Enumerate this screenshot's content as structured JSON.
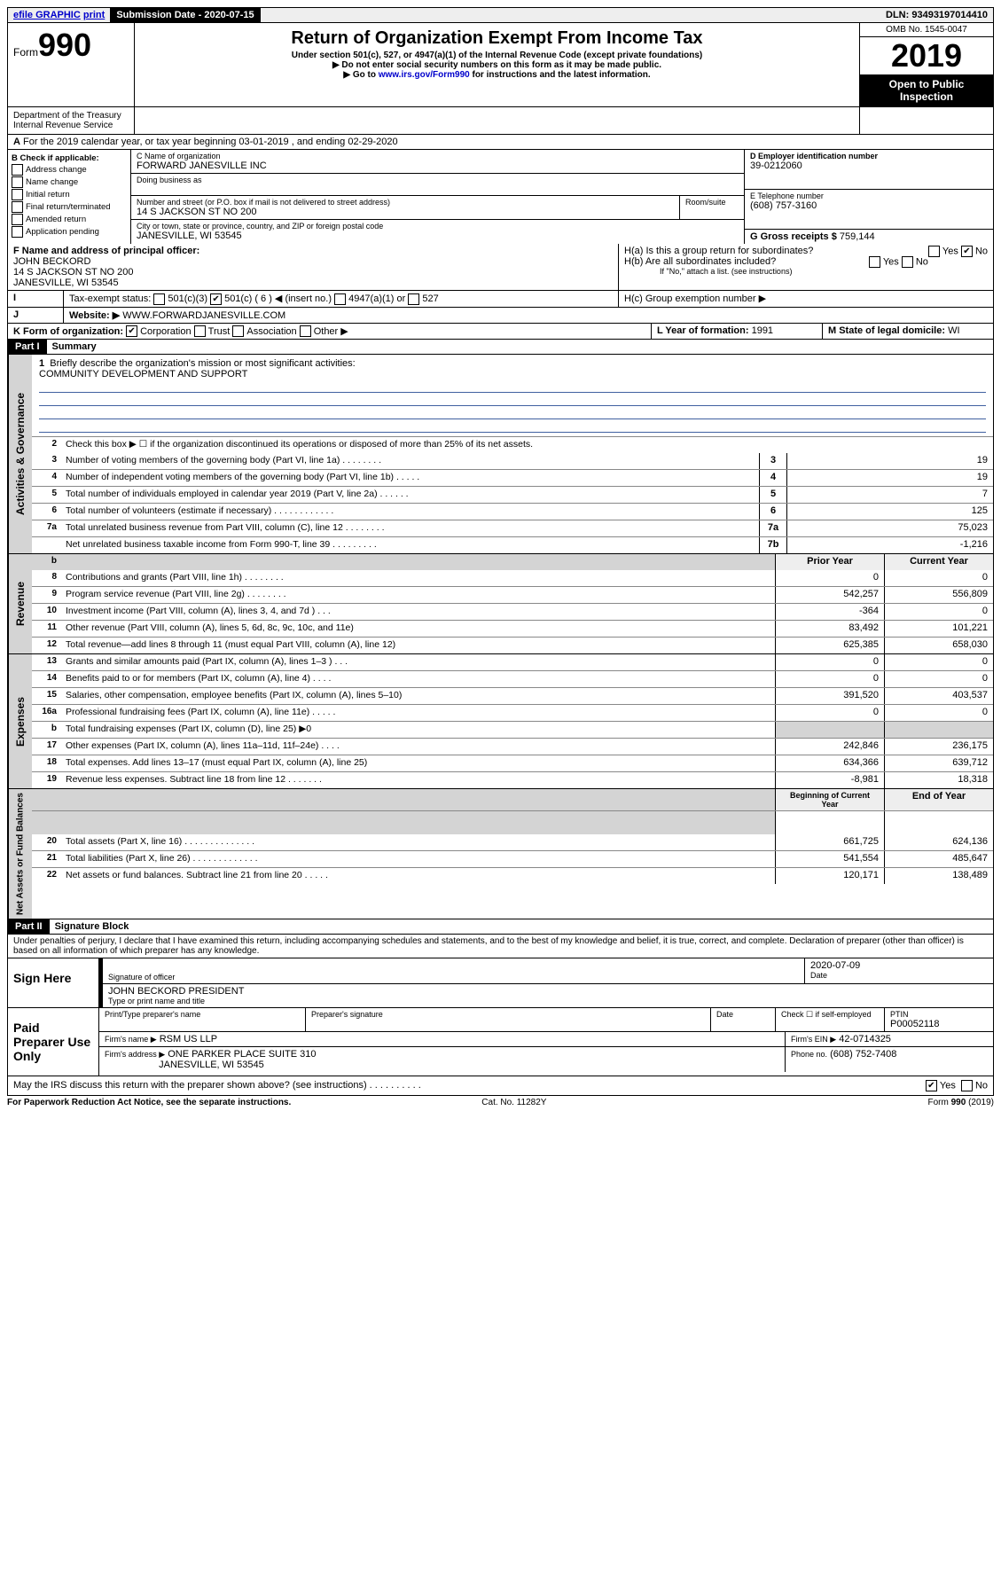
{
  "topbar": {
    "efile": "efile GRAPHIC",
    "print": "print",
    "sub_label": "Submission Date - 2020-07-15",
    "dln": "DLN: 93493197014410"
  },
  "header": {
    "form": "Form",
    "form_no": "990",
    "title": "Return of Organization Exempt From Income Tax",
    "sub1": "Under section 501(c), 527, or 4947(a)(1) of the Internal Revenue Code (except private foundations)",
    "sub2": "▶ Do not enter social security numbers on this form as it may be made public.",
    "sub3_pre": "▶ Go to ",
    "sub3_link": "www.irs.gov/Form990",
    "sub3_post": " for instructions and the latest information.",
    "omb": "OMB No. 1545-0047",
    "year": "2019",
    "open": "Open to Public Inspection",
    "dept": "Department of the Treasury\nInternal Revenue Service"
  },
  "rowA": "For the 2019 calendar year, or tax year beginning 03-01-2019     , and ending 02-29-2020",
  "boxB": {
    "title": "B Check if applicable:",
    "items": [
      "Address change",
      "Name change",
      "Initial return",
      "Final return/terminated",
      "Amended return",
      "Application pending"
    ]
  },
  "boxC": {
    "name_lbl": "C Name of organization",
    "name": "FORWARD JANESVILLE INC",
    "dba_lbl": "Doing business as",
    "addr_lbl": "Number and street (or P.O. box if mail is not delivered to street address)",
    "addr": "14 S JACKSON ST NO 200",
    "room_lbl": "Room/suite",
    "city_lbl": "City or town, state or province, country, and ZIP or foreign postal code",
    "city": "JANESVILLE, WI  53545"
  },
  "boxD": {
    "lbl": "D Employer identification number",
    "val": "39-0212060"
  },
  "boxE": {
    "lbl": "E Telephone number",
    "val": "(608) 757-3160"
  },
  "boxG": {
    "lbl": "G Gross receipts $",
    "val": " 759,144"
  },
  "boxF": {
    "lbl": "F  Name and address of principal officer:",
    "name": "JOHN BECKORD",
    "addr1": "14 S JACKSON ST NO 200",
    "addr2": "JANESVILLE, WI  53545"
  },
  "boxH": {
    "a": "H(a)  Is this a group return for subordinates?",
    "b": "H(b)  Are all subordinates included?",
    "note": "If \"No,\" attach a list. (see instructions)",
    "c": "H(c)  Group exemption number ▶"
  },
  "boxI": {
    "lbl": "Tax-exempt status:",
    "opts": [
      "501(c)(3)",
      "501(c) ( 6 ) ◀ (insert no.)",
      "4947(a)(1) or",
      "527"
    ]
  },
  "boxJ": {
    "lbl": "Website: ▶",
    "val": " WWW.FORWARDJANESVILLE.COM"
  },
  "boxK": {
    "lbl": "K Form of organization:",
    "opts": [
      "Corporation",
      "Trust",
      "Association",
      "Other ▶"
    ]
  },
  "boxL": {
    "lbl": "L Year of formation:",
    "val": "1991"
  },
  "boxM": {
    "lbl": "M State of legal domicile:",
    "val": "WI"
  },
  "part1": {
    "hdr": "Part I",
    "title": "Summary"
  },
  "summary": {
    "l1": "Briefly describe the organization's mission or most significant activities:",
    "mission": "COMMUNITY DEVELOPMENT AND SUPPORT",
    "l2": "Check this box ▶ ☐  if the organization discontinued its operations or disposed of more than 25% of its net assets.",
    "lines1": [
      {
        "n": "3",
        "d": "Number of voting members of the governing body (Part VI, line 1a)   .    .    .    .    .    .    .    .",
        "b": "3",
        "v": "19"
      },
      {
        "n": "4",
        "d": "Number of independent voting members of the governing body (Part VI, line 1b)  .    .    .    .    .",
        "b": "4",
        "v": "19"
      },
      {
        "n": "5",
        "d": "Total number of individuals employed in calendar year 2019 (Part V, line 2a)   .    .    .    .    .    .",
        "b": "5",
        "v": "7"
      },
      {
        "n": "6",
        "d": "Total number of volunteers (estimate if necessary)   .    .    .    .    .    .    .    .    .    .    .    .",
        "b": "6",
        "v": "125"
      },
      {
        "n": "7a",
        "d": "Total unrelated business revenue from Part VIII, column (C), line 12  .    .    .    .    .    .    .    .",
        "b": "7a",
        "v": "75,023"
      },
      {
        "n": "",
        "d": "Net unrelated business taxable income from Form 990-T, line 39   .    .    .    .    .    .    .    .    .",
        "b": "7b",
        "v": "-1,216"
      }
    ],
    "hdr_prior": "Prior Year",
    "hdr_curr": "Current Year",
    "revenue": [
      {
        "n": "8",
        "d": "Contributions and grants (Part VIII, line 1h)   .    .    .    .    .    .    .    .",
        "p": "0",
        "c": "0"
      },
      {
        "n": "9",
        "d": "Program service revenue (Part VIII, line 2g)   .    .    .    .    .    .    .    .",
        "p": "542,257",
        "c": "556,809"
      },
      {
        "n": "10",
        "d": "Investment income (Part VIII, column (A), lines 3, 4, and 7d )   .    .    .",
        "p": "-364",
        "c": "0"
      },
      {
        "n": "11",
        "d": "Other revenue (Part VIII, column (A), lines 5, 6d, 8c, 9c, 10c, and 11e)",
        "p": "83,492",
        "c": "101,221"
      },
      {
        "n": "12",
        "d": "Total revenue—add lines 8 through 11 (must equal Part VIII, column (A), line 12)",
        "p": "625,385",
        "c": "658,030"
      }
    ],
    "expenses": [
      {
        "n": "13",
        "d": "Grants and similar amounts paid (Part IX, column (A), lines 1–3 )   .    .    .",
        "p": "0",
        "c": "0"
      },
      {
        "n": "14",
        "d": "Benefits paid to or for members (Part IX, column (A), line 4)   .    .    .    .",
        "p": "0",
        "c": "0"
      },
      {
        "n": "15",
        "d": "Salaries, other compensation, employee benefits (Part IX, column (A), lines 5–10)",
        "p": "391,520",
        "c": "403,537"
      },
      {
        "n": "16a",
        "d": "Professional fundraising fees (Part IX, column (A), line 11e)   .    .    .    .    .",
        "p": "0",
        "c": "0"
      },
      {
        "n": "b",
        "d": "Total fundraising expenses (Part IX, column (D), line 25) ▶0",
        "p": "",
        "c": "",
        "gray": true
      },
      {
        "n": "17",
        "d": "Other expenses (Part IX, column (A), lines 11a–11d, 11f–24e)   .    .    .    .",
        "p": "242,846",
        "c": "236,175"
      },
      {
        "n": "18",
        "d": "Total expenses. Add lines 13–17 (must equal Part IX, column (A), line 25)",
        "p": "634,366",
        "c": "639,712"
      },
      {
        "n": "19",
        "d": "Revenue less expenses. Subtract line 18 from line 12  .    .    .    .    .    .    .",
        "p": "-8,981",
        "c": "18,318"
      }
    ],
    "hdr_beg": "Beginning of Current Year",
    "hdr_end": "End of Year",
    "netassets": [
      {
        "n": "20",
        "d": "Total assets (Part X, line 16)  .    .    .    .    .    .    .    .    .    .    .    .    .    .",
        "p": "661,725",
        "c": "624,136"
      },
      {
        "n": "21",
        "d": "Total liabilities (Part X, line 26)  .    .    .    .    .    .    .    .    .    .    .    .    .",
        "p": "541,554",
        "c": "485,647"
      },
      {
        "n": "22",
        "d": "Net assets or fund balances. Subtract line 21 from line 20  .    .    .    .    .",
        "p": "120,171",
        "c": "138,489"
      }
    ]
  },
  "sidelabels": {
    "gov": "Activities & Governance",
    "rev": "Revenue",
    "exp": "Expenses",
    "net": "Net Assets or Fund Balances"
  },
  "part2": {
    "hdr": "Part II",
    "title": "Signature Block"
  },
  "perjury": "Under penalties of perjury, I declare that I have examined this return, including accompanying schedules and statements, and to the best of my knowledge and belief, it is true, correct, and complete. Declaration of preparer (other than officer) is based on all information of which preparer has any knowledge.",
  "sign": {
    "here": "Sign Here",
    "sig_lbl": "Signature of officer",
    "date_lbl": "Date",
    "date": "2020-07-09",
    "name": "JOHN BECKORD PRESIDENT",
    "name_lbl": "Type or print name and title"
  },
  "paid": {
    "hdr": "Paid Preparer Use Only",
    "c1": "Print/Type preparer's name",
    "c2": "Preparer's signature",
    "c3": "Date",
    "c4a": "Check ☐ if self-employed",
    "c5": "PTIN",
    "ptin": "P00052118",
    "firm_lbl": "Firm's name    ▶",
    "firm": "RSM US LLP",
    "ein_lbl": "Firm's EIN ▶",
    "ein": "42-0714325",
    "addr_lbl": "Firm's address ▶",
    "addr1": "ONE PARKER PLACE SUITE 310",
    "addr2": "JANESVILLE, WI  53545",
    "phone_lbl": "Phone no.",
    "phone": "(608) 752-7408"
  },
  "discuss": "May the IRS discuss this return with the preparer shown above? (see instructions)   .    .    .    .    .    .    .    .    .    .",
  "footer": {
    "l": "For Paperwork Reduction Act Notice, see the separate instructions.",
    "m": "Cat. No. 11282Y",
    "r": "Form 990 (2019)"
  }
}
